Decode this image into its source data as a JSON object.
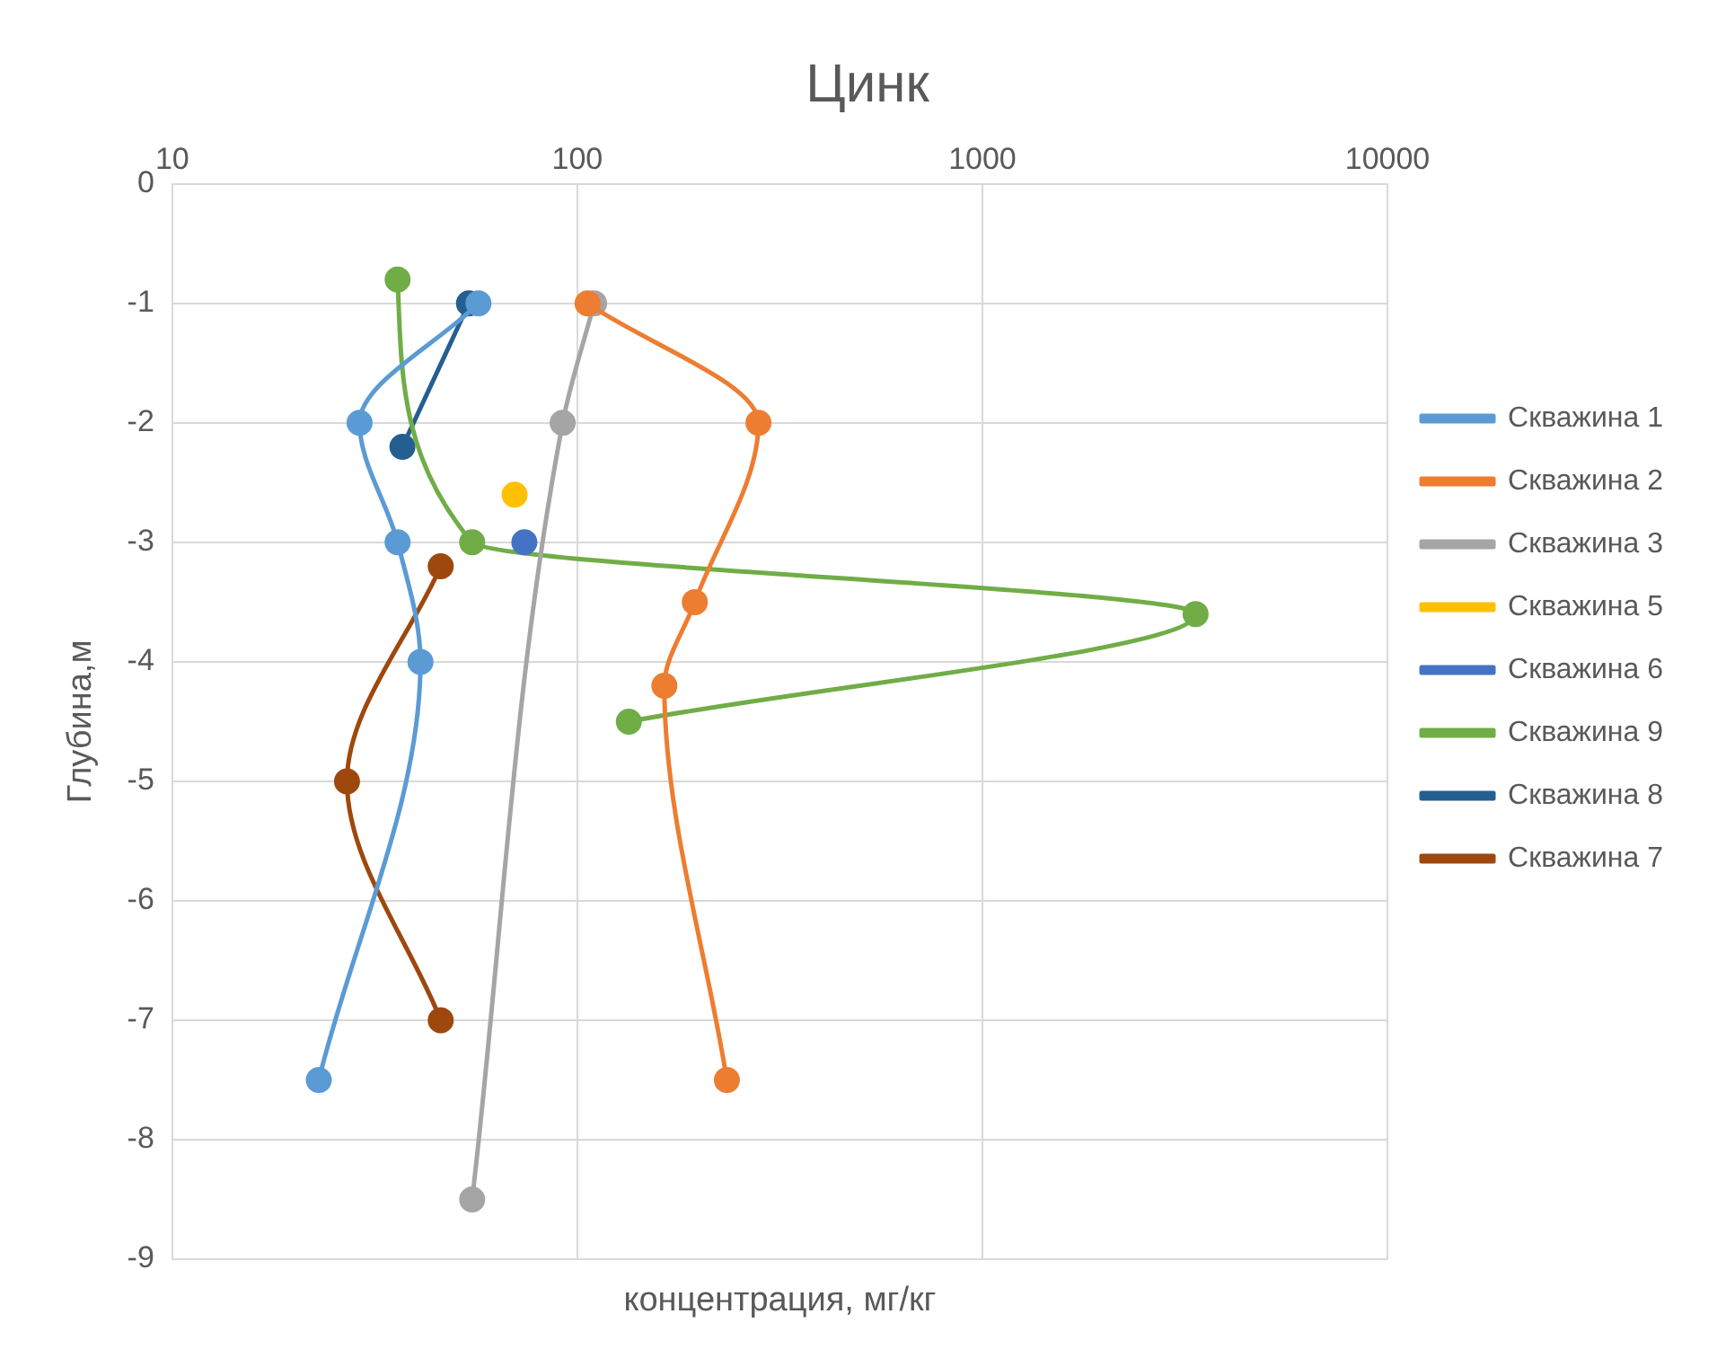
{
  "chart_data": {
    "type": "line",
    "title": "Цинк",
    "xlabel": "концентрация, мг/кг",
    "ylabel": "Глубина,м",
    "log": "x",
    "xlim": [
      10,
      10000
    ],
    "xticks": [
      10,
      100,
      1000,
      10000
    ],
    "ylim": [
      -9,
      0
    ],
    "yticks": [
      0,
      -1,
      -2,
      -3,
      -4,
      -5,
      -6,
      -7,
      -8,
      -9
    ],
    "grid": true,
    "legend": "right",
    "marker": "circle",
    "line_style": "solid",
    "series": [
      {
        "name": "Скважина 1",
        "color": "#5b9bd5",
        "x": [
          57,
          29,
          36,
          41,
          23
        ],
        "values": [
          -1,
          -2,
          -3,
          -4,
          -7.5
        ]
      },
      {
        "name": "Скважина 2",
        "color": "#ed7d31",
        "x": [
          106,
          280,
          195,
          164,
          234
        ],
        "values": [
          -1,
          -2,
          -3.5,
          -4.2,
          -7.5
        ]
      },
      {
        "name": "Скважина 3",
        "color": "#a5a5a5",
        "x": [
          110,
          92,
          55
        ],
        "values": [
          -1,
          -2,
          -8.5
        ]
      },
      {
        "name": "Скважина 5",
        "color": "#ffc000",
        "x": [
          70
        ],
        "values": [
          -2.6
        ]
      },
      {
        "name": "Скважина 6",
        "color": "#4472c4",
        "x": [
          74
        ],
        "values": [
          -3
        ]
      },
      {
        "name": "Скважина 9",
        "color": "#70ad47",
        "x": [
          36,
          55,
          3360,
          134
        ],
        "values": [
          -0.8,
          -3,
          -3.6,
          -4.5
        ]
      },
      {
        "name": "Скважина 8",
        "color": "#255e91",
        "x": [
          54,
          37
        ],
        "values": [
          -1,
          -2.2
        ]
      },
      {
        "name": "Скважина 7",
        "color": "#9e480e",
        "x": [
          46,
          27,
          46
        ],
        "values": [
          -3.2,
          -5,
          -7
        ]
      }
    ]
  }
}
